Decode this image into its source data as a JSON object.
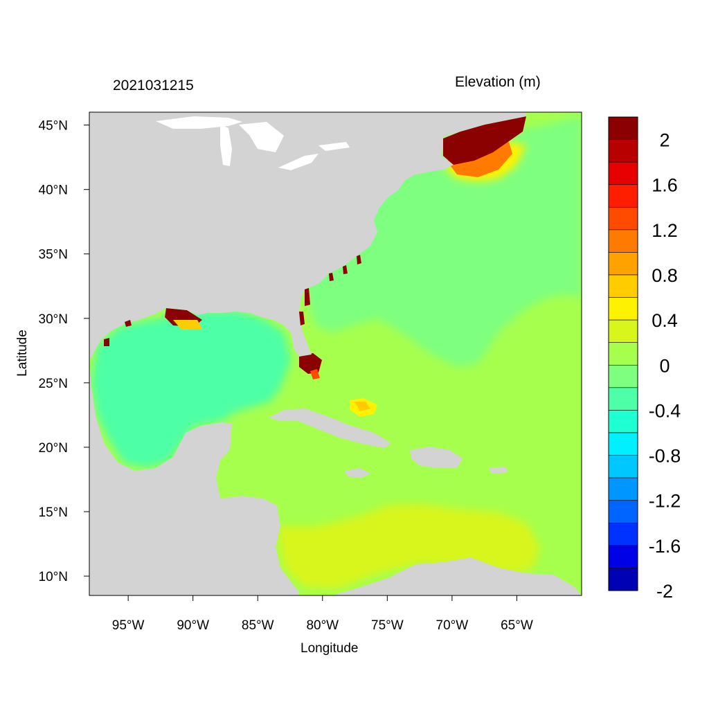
{
  "header": {
    "timestamp": "2021031215",
    "variable_title": "Elevation (m)"
  },
  "axes": {
    "x_title": "Longitude",
    "y_title": "Latitude",
    "x_ticks": [
      "95°W",
      "90°W",
      "85°W",
      "80°W",
      "75°W",
      "70°W",
      "65°W"
    ],
    "y_ticks": [
      "45°N",
      "40°N",
      "35°N",
      "30°N",
      "25°N",
      "20°N",
      "15°N",
      "10°N"
    ],
    "lon_range": [
      -98,
      -60
    ],
    "lat_range": [
      8.5,
      46
    ]
  },
  "colorbar": {
    "labels": [
      "2",
      "1.6",
      "1.2",
      "0.8",
      "0.4",
      "0",
      "-0.4",
      "-0.8",
      "-1.2",
      "-1.6",
      "-2"
    ],
    "colors_top_to_bottom": [
      "#8b0000",
      "#b80000",
      "#e60000",
      "#ff1e00",
      "#ff4b00",
      "#ff7a00",
      "#ffa200",
      "#ffcc00",
      "#fff200",
      "#d8f51c",
      "#a6ff4d",
      "#7fff7f",
      "#4dffa6",
      "#1effd2",
      "#00f0ff",
      "#00c8ff",
      "#0096ff",
      "#0064ff",
      "#0032ff",
      "#0000e6",
      "#0000b4"
    ]
  },
  "colors": {
    "land": "#d3d3d3",
    "lakes": "#ffffff"
  }
}
